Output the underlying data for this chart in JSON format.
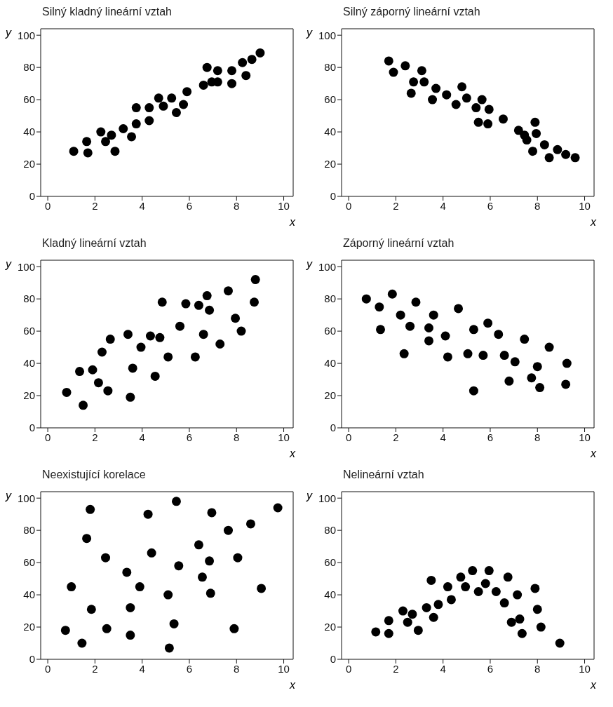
{
  "chart_data": [
    {
      "type": "scatter",
      "title": "Silný kladný lineární vztah",
      "xlabel": "x",
      "ylabel": "y",
      "color": "#000000",
      "marker": "circle",
      "xlim": [
        -0.3,
        10.4
      ],
      "ylim": [
        0,
        104
      ],
      "xticks": [
        0,
        2,
        4,
        6,
        8,
        10
      ],
      "yticks": [
        0,
        20,
        40,
        60,
        80,
        100
      ],
      "x": [
        1.1,
        1.65,
        1.7,
        2.25,
        2.45,
        2.7,
        2.85,
        3.2,
        3.55,
        3.75,
        3.75,
        4.3,
        4.3,
        4.7,
        4.9,
        5.25,
        5.45,
        5.75,
        5.9,
        6.6,
        6.75,
        6.95,
        7.2,
        7.2,
        7.8,
        7.8,
        8.25,
        8.4,
        8.65,
        9.0
      ],
      "values": [
        28,
        34,
        27,
        40,
        34,
        38,
        28,
        42,
        37,
        45,
        55,
        47,
        55,
        61,
        56,
        61,
        52,
        57,
        65,
        69,
        80,
        71,
        71,
        78,
        78,
        70,
        83,
        75,
        85,
        89
      ]
    },
    {
      "type": "scatter",
      "title": "Silný záporný lineární vztah",
      "xlabel": "x",
      "ylabel": "y",
      "color": "#000000",
      "marker": "circle",
      "xlim": [
        -0.3,
        10.4
      ],
      "ylim": [
        0,
        104
      ],
      "xticks": [
        0,
        2,
        4,
        6,
        8,
        10
      ],
      "yticks": [
        0,
        20,
        40,
        60,
        80,
        100
      ],
      "x": [
        1.7,
        1.9,
        2.4,
        3.1,
        2.75,
        3.2,
        2.65,
        3.7,
        3.55,
        4.15,
        4.55,
        4.8,
        5.0,
        5.4,
        5.65,
        5.95,
        5.5,
        5.9,
        6.55,
        7.2,
        7.45,
        7.55,
        7.9,
        7.95,
        7.8,
        8.3,
        8.5,
        8.85,
        9.2,
        9.6
      ],
      "values": [
        84,
        77,
        81,
        78,
        71,
        71,
        64,
        67,
        60,
        63,
        57,
        68,
        61,
        55,
        60,
        54,
        46,
        45,
        48,
        41,
        38,
        35,
        46,
        39,
        28,
        32,
        24,
        29,
        26,
        24
      ]
    },
    {
      "type": "scatter",
      "title": "Kladný lineární vztah",
      "xlabel": "x",
      "ylabel": "y",
      "color": "#000000",
      "marker": "circle",
      "xlim": [
        -0.3,
        10.4
      ],
      "ylim": [
        0,
        104
      ],
      "xticks": [
        0,
        2,
        4,
        6,
        8,
        10
      ],
      "yticks": [
        0,
        20,
        40,
        60,
        80,
        100
      ],
      "x": [
        0.8,
        1.35,
        1.5,
        1.9,
        2.15,
        2.3,
        2.55,
        2.65,
        3.4,
        3.5,
        3.6,
        3.95,
        4.35,
        4.55,
        4.75,
        4.85,
        5.1,
        5.6,
        5.85,
        6.25,
        6.4,
        6.6,
        6.75,
        6.85,
        7.3,
        7.65,
        7.95,
        8.2,
        8.75,
        8.8
      ],
      "values": [
        22,
        35,
        14,
        36,
        28,
        47,
        23,
        55,
        58,
        19,
        37,
        50,
        57,
        32,
        56,
        78,
        44,
        63,
        77,
        44,
        76,
        58,
        82,
        73,
        52,
        85,
        68,
        60,
        78,
        92
      ]
    },
    {
      "type": "scatter",
      "title": "Záporný lineární vztah",
      "xlabel": "x",
      "ylabel": "y",
      "color": "#000000",
      "marker": "circle",
      "xlim": [
        -0.3,
        10.4
      ],
      "ylim": [
        0,
        104
      ],
      "xticks": [
        0,
        2,
        4,
        6,
        8,
        10
      ],
      "yticks": [
        0,
        20,
        40,
        60,
        80,
        100
      ],
      "x": [
        0.75,
        1.3,
        1.35,
        1.85,
        2.2,
        2.35,
        2.6,
        2.85,
        3.4,
        3.4,
        3.6,
        4.1,
        4.2,
        4.65,
        5.05,
        5.3,
        5.3,
        5.7,
        5.9,
        6.35,
        6.6,
        6.8,
        7.05,
        7.45,
        7.75,
        8.0,
        8.1,
        8.5,
        9.2,
        9.25
      ],
      "values": [
        80,
        75,
        61,
        83,
        70,
        46,
        63,
        78,
        62,
        54,
        70,
        57,
        44,
        74,
        46,
        61,
        23,
        45,
        65,
        58,
        45,
        29,
        41,
        55,
        31,
        38,
        25,
        50,
        27,
        40
      ]
    },
    {
      "type": "scatter",
      "title": "Neexistující korelace",
      "xlabel": "x",
      "ylabel": "y",
      "color": "#000000",
      "marker": "circle",
      "xlim": [
        -0.3,
        10.4
      ],
      "ylim": [
        0,
        104
      ],
      "xticks": [
        0,
        2,
        4,
        6,
        8,
        10
      ],
      "yticks": [
        0,
        20,
        40,
        60,
        80,
        100
      ],
      "x": [
        0.75,
        1.0,
        1.45,
        1.65,
        1.8,
        1.85,
        2.45,
        2.5,
        3.35,
        3.5,
        3.5,
        3.9,
        4.25,
        4.4,
        5.1,
        5.15,
        5.35,
        5.45,
        5.55,
        6.4,
        6.55,
        6.85,
        6.9,
        6.95,
        7.65,
        7.9,
        8.05,
        8.6,
        9.05,
        9.75
      ],
      "values": [
        18,
        45,
        10,
        75,
        93,
        31,
        63,
        19,
        54,
        15,
        32,
        45,
        90,
        66,
        40,
        7,
        22,
        98,
        58,
        71,
        51,
        61,
        41,
        91,
        80,
        19,
        63,
        84,
        44,
        94
      ]
    },
    {
      "type": "scatter",
      "title": "Nelineární vztah",
      "xlabel": "x",
      "ylabel": "y",
      "color": "#000000",
      "marker": "circle",
      "xlim": [
        -0.3,
        10.4
      ],
      "ylim": [
        0,
        104
      ],
      "xticks": [
        0,
        2,
        4,
        6,
        8,
        10
      ],
      "yticks": [
        0,
        20,
        40,
        60,
        80,
        100
      ],
      "x": [
        1.15,
        1.7,
        1.7,
        2.3,
        2.5,
        2.7,
        2.95,
        3.3,
        3.5,
        3.6,
        3.8,
        4.2,
        4.35,
        4.75,
        4.95,
        5.25,
        5.5,
        5.8,
        5.95,
        6.25,
        6.6,
        6.75,
        6.9,
        7.15,
        7.25,
        7.35,
        7.9,
        8.0,
        8.15,
        8.95
      ],
      "values": [
        17,
        24,
        16,
        30,
        23,
        28,
        18,
        32,
        49,
        26,
        34,
        45,
        37,
        51,
        45,
        55,
        42,
        47,
        55,
        42,
        35,
        51,
        23,
        40,
        25,
        16,
        44,
        31,
        20,
        10
      ]
    }
  ]
}
